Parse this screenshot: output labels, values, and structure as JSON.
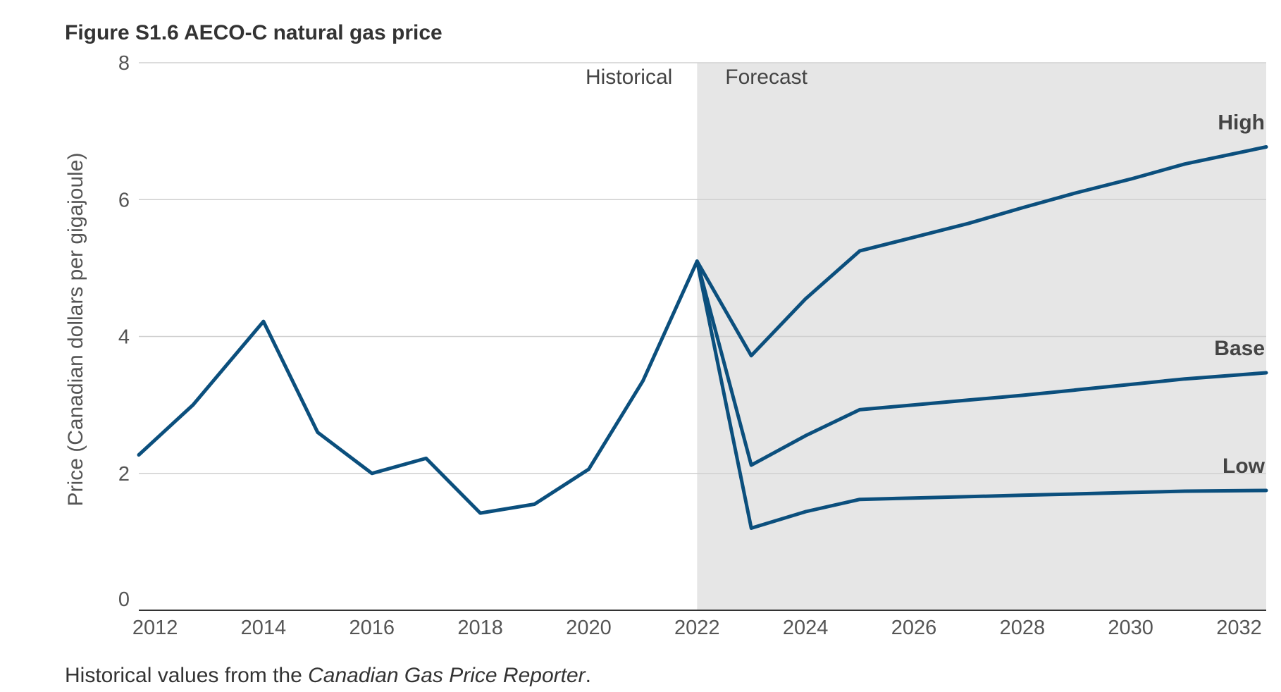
{
  "figure": {
    "title": "Figure S1.6  AECO-C natural gas price",
    "footnote_prefix": "Historical values from the ",
    "footnote_source": "Canadian Gas Price Reporter",
    "footnote_suffix": "."
  },
  "chart_data": {
    "type": "line",
    "ylabel": "Price (Canadian dollars per gigajoule)",
    "xlabel": "",
    "xlim": [
      2011.7,
      2032.5
    ],
    "ylim": [
      0,
      8
    ],
    "yticks": [
      0,
      2,
      4,
      6,
      8
    ],
    "xticks": [
      2012,
      2014,
      2016,
      2018,
      2020,
      2022,
      2024,
      2026,
      2028,
      2030,
      2032
    ],
    "grid": true,
    "regions": [
      {
        "label": "Historical",
        "from": 2011.7,
        "to": 2022,
        "shaded": false
      },
      {
        "label": "Forecast",
        "from": 2022,
        "to": 2032.5,
        "shaded": true
      }
    ],
    "color": "#0b4f7d",
    "shade_color": "#e6e6e6",
    "series": [
      {
        "name": "Historical",
        "points": [
          [
            2011.7,
            2.27
          ],
          [
            2012.7,
            3.0
          ],
          [
            2014,
            4.22
          ],
          [
            2015,
            2.6
          ],
          [
            2016,
            2.0
          ],
          [
            2017,
            2.22
          ],
          [
            2018,
            1.42
          ],
          [
            2019,
            1.55
          ],
          [
            2020,
            2.06
          ],
          [
            2021,
            3.35
          ],
          [
            2022,
            5.1
          ]
        ]
      },
      {
        "name": "High",
        "points": [
          [
            2022,
            5.1
          ],
          [
            2023,
            3.72
          ],
          [
            2024,
            4.55
          ],
          [
            2025,
            5.25
          ],
          [
            2026,
            5.45
          ],
          [
            2027,
            5.65
          ],
          [
            2028,
            5.88
          ],
          [
            2029,
            6.1
          ],
          [
            2030,
            6.3
          ],
          [
            2031,
            6.52
          ],
          [
            2032.5,
            6.77
          ]
        ]
      },
      {
        "name": "Base",
        "points": [
          [
            2022,
            5.1
          ],
          [
            2023,
            2.12
          ],
          [
            2024,
            2.55
          ],
          [
            2025,
            2.93
          ],
          [
            2026,
            3.0
          ],
          [
            2027,
            3.07
          ],
          [
            2028,
            3.14
          ],
          [
            2029,
            3.22
          ],
          [
            2030,
            3.3
          ],
          [
            2031,
            3.38
          ],
          [
            2032.5,
            3.47
          ]
        ]
      },
      {
        "name": "Low",
        "points": [
          [
            2022,
            5.1
          ],
          [
            2023,
            1.2
          ],
          [
            2024,
            1.44
          ],
          [
            2025,
            1.62
          ],
          [
            2026,
            1.64
          ],
          [
            2027,
            1.66
          ],
          [
            2028,
            1.68
          ],
          [
            2029,
            1.7
          ],
          [
            2030,
            1.72
          ],
          [
            2031,
            1.74
          ],
          [
            2032.5,
            1.75
          ]
        ]
      }
    ],
    "series_labels": [
      {
        "text": "High",
        "series": "High"
      },
      {
        "text": "Base",
        "series": "Base"
      },
      {
        "text": "Low",
        "series": "Low"
      }
    ]
  }
}
